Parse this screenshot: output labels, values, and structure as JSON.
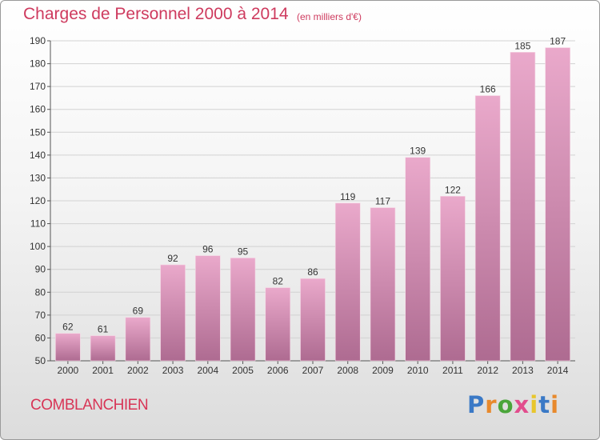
{
  "chart_data": {
    "type": "bar",
    "title": "Charges de Personnel 2000 à 2014",
    "subtitle": "(en milliers d'€)",
    "categories": [
      "2000",
      "2001",
      "2002",
      "2003",
      "2004",
      "2005",
      "2006",
      "2007",
      "2008",
      "2009",
      "2010",
      "2011",
      "2012",
      "2013",
      "2014"
    ],
    "values": [
      62,
      61,
      69,
      92,
      96,
      95,
      82,
      86,
      119,
      117,
      139,
      122,
      166,
      185,
      187
    ],
    "ylim": [
      50,
      190
    ],
    "yticks": [
      50,
      60,
      70,
      80,
      90,
      100,
      110,
      120,
      130,
      140,
      150,
      160,
      170,
      180,
      190
    ],
    "grid": true,
    "xlabel": "",
    "ylabel": ""
  },
  "footer": {
    "commune": "COMBLANCHIEN",
    "logo_letters": [
      "P",
      "r",
      "o",
      "x",
      "i",
      "t",
      "i"
    ],
    "logo_colors": [
      "#3a79c6",
      "#e8892c",
      "#4aa53a",
      "#e24d8d",
      "#e8c62c",
      "#3a79c6",
      "#e8892c"
    ]
  },
  "colors": {
    "title": "#ce3a5e",
    "bar_top": "#eaa9cb",
    "bar_bottom": "#ae6b91"
  }
}
